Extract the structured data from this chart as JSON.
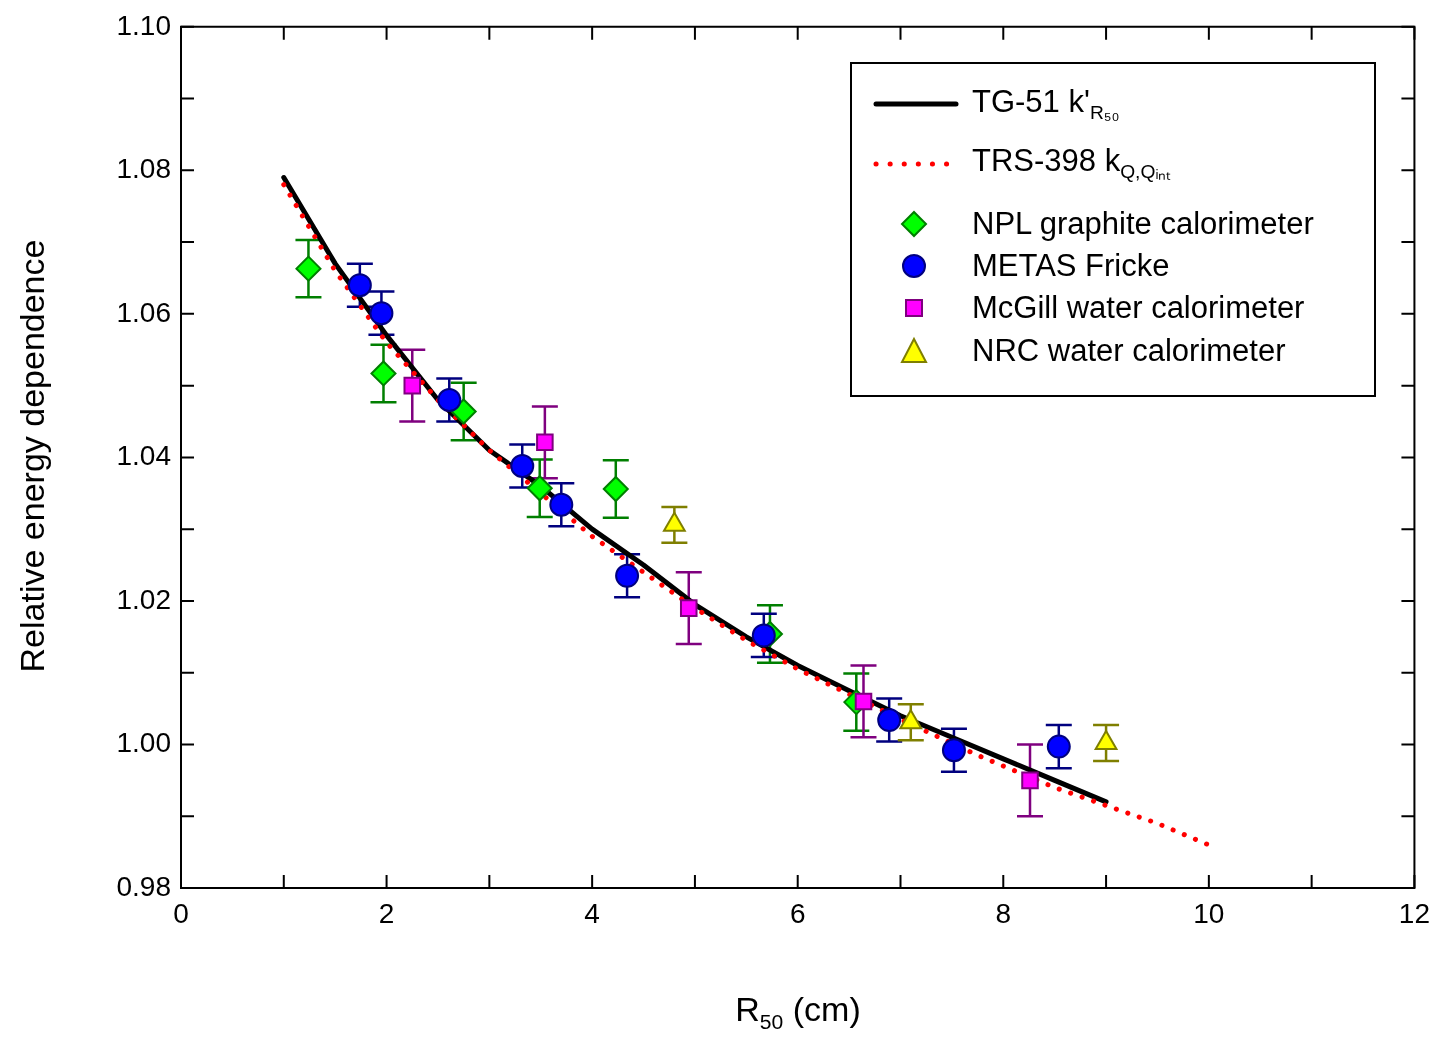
{
  "chart_data": {
    "type": "scatter",
    "xlabel": "R$_{50}$ (cm)",
    "ylabel": "Relative energy dependence",
    "xlim": [
      0,
      12
    ],
    "xticks": [
      0,
      {
        "value": 1,
        "label": null
      },
      2,
      {
        "value": 3,
        "label": null
      },
      4,
      {
        "value": 5,
        "label": null
      },
      6,
      {
        "value": 7,
        "label": null
      },
      8,
      {
        "value": 9,
        "label": null
      },
      10,
      {
        "value": 11,
        "label": null
      },
      12
    ],
    "ylim": [
      0.98,
      1.1
    ],
    "yticks": [
      0.98,
      {
        "value": 0.99,
        "label": null
      },
      {
        "value": 1.0,
        "label": "1.00"
      },
      {
        "value": 1.01,
        "label": null
      },
      1.02,
      {
        "value": 1.03,
        "label": null
      },
      1.04,
      {
        "value": 1.05,
        "label": null
      },
      1.06,
      {
        "value": 1.07,
        "label": null
      },
      1.08,
      {
        "value": 1.09,
        "label": null
      },
      {
        "value": 1.1,
        "label": "1.10"
      }
    ],
    "grid": false,
    "legend": "top right",
    "series": [
      {
        "name": "TG-51 k'$_{R₅₀}$",
        "type": "line",
        "marker": "none",
        "line_style": "solid",
        "color": "#000000",
        "x": [
          1,
          1.5,
          2,
          2.5,
          3,
          3.5,
          4,
          4.5,
          5,
          5.5,
          6,
          6.5,
          7,
          7.5,
          8,
          8.5,
          9
        ],
        "values": [
          1.079,
          1.067,
          1.057,
          1.048,
          1.041,
          1.036,
          1.03,
          1.025,
          1.0195,
          1.015,
          1.011,
          1.0075,
          1.004,
          1.001,
          0.998,
          0.995,
          0.992
        ]
      },
      {
        "name": "TRS-398 k$_{Q,Qᵢₙₜ}$",
        "type": "line",
        "marker": "none",
        "line_style": "dotted",
        "color": "#ff0000",
        "x": [
          1,
          1.5,
          2,
          2.5,
          3,
          3.5,
          4,
          4.5,
          5,
          5.5,
          6,
          6.5,
          7,
          7.75,
          8,
          8.5,
          9,
          9.5,
          10
        ],
        "values": [
          1.078,
          1.066,
          1.056,
          1.048,
          1.041,
          1.035,
          1.029,
          1.024,
          1.019,
          1.0145,
          1.0105,
          1.007,
          1.0035,
          0.9985,
          0.997,
          0.994,
          0.9915,
          0.989,
          0.986
        ]
      },
      {
        "name": "NPL graphite calorimeter",
        "marker": "diamond",
        "color": "#00ff00",
        "x": [
          1.24,
          1.97,
          2.75,
          3.49,
          4.23,
          5.73,
          6.57
        ],
        "values": [
          1.0663,
          1.0517,
          1.0464,
          1.0357,
          1.0356,
          1.0154,
          1.0059
        ],
        "errors": [
          0.004,
          0.004,
          0.004,
          0.004,
          0.004,
          0.004,
          0.004
        ]
      },
      {
        "name": "METAS Fricke",
        "marker": "circle",
        "color": "#0000ff",
        "x": [
          1.74,
          1.95,
          2.61,
          3.32,
          3.7,
          4.34,
          5.67,
          6.89,
          7.52,
          8.54
        ],
        "values": [
          1.064,
          1.0601,
          1.048,
          1.0388,
          1.0334,
          1.0235,
          1.0152,
          1.0034,
          0.9992,
          0.9997
        ],
        "errors": [
          0.003,
          0.003,
          0.003,
          0.003,
          0.003,
          0.003,
          0.003,
          0.003,
          0.003,
          0.003
        ]
      },
      {
        "name": "McGill water calorimeter",
        "marker": "square",
        "color": "#ff00ff",
        "x": [
          2.25,
          3.54,
          4.94,
          6.64,
          8.26
        ],
        "values": [
          1.05,
          1.0421,
          1.019,
          1.006,
          0.995
        ],
        "errors": [
          0.005,
          0.005,
          0.005,
          0.005,
          0.005
        ]
      },
      {
        "name": "NRC water calorimeter",
        "marker": "triangle",
        "color": "#ffff00",
        "x": [
          4.8,
          7.1,
          9.0
        ],
        "values": [
          1.0306,
          1.0031,
          1.0002
        ],
        "errors": [
          0.0025,
          0.0025,
          0.0025
        ]
      }
    ]
  }
}
